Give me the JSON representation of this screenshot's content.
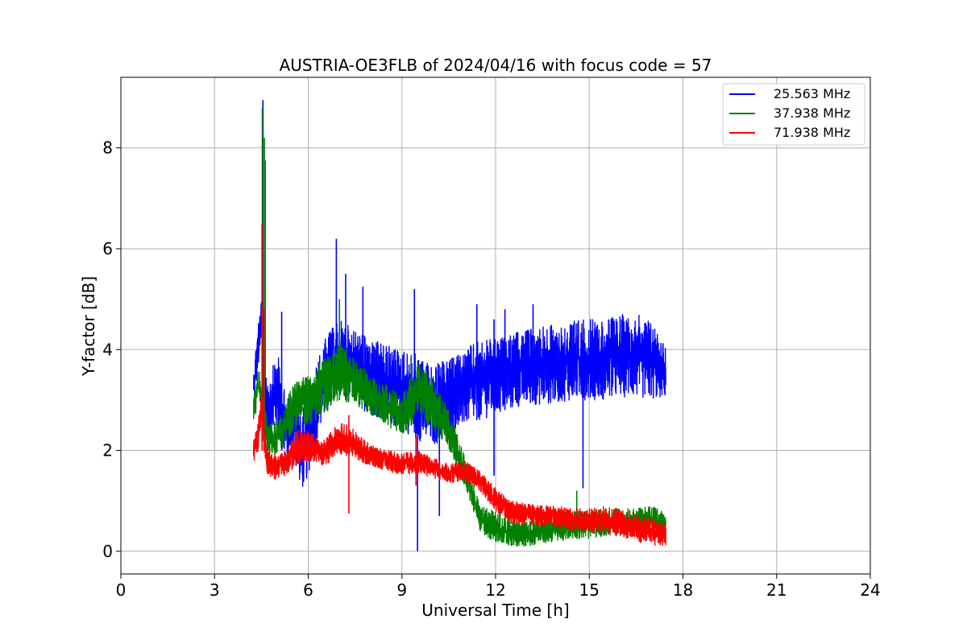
{
  "chart_data": {
    "type": "line",
    "title": "AUSTRIA-OE3FLB of 2024/04/16 with focus code = 57",
    "xlabel": "Universal Time [h]",
    "ylabel": "Y-factor [dB]",
    "xlim": [
      0,
      24
    ],
    "ylim": [
      -0.45,
      9.4
    ],
    "xticks": [
      0,
      3,
      6,
      9,
      12,
      15,
      18,
      21,
      24
    ],
    "xtick_labels": [
      "0",
      "3",
      "6",
      "9",
      "12",
      "15",
      "18",
      "21",
      "24"
    ],
    "yticks": [
      0,
      2,
      4,
      6,
      8
    ],
    "ytick_labels": [
      "0",
      "2",
      "4",
      "6",
      "8"
    ],
    "grid": true,
    "legend_position": "top-right",
    "series": [
      {
        "name": "25.563 MHz",
        "color": "#0000ff",
        "low": [
          [
            4.25,
            2.9
          ],
          [
            4.4,
            3.6
          ],
          [
            4.5,
            4.0
          ],
          [
            4.6,
            2.2
          ],
          [
            4.8,
            2.2
          ],
          [
            5.0,
            2.4
          ],
          [
            5.3,
            1.8
          ],
          [
            5.5,
            1.9
          ],
          [
            5.8,
            1.2
          ],
          [
            6.0,
            1.5
          ],
          [
            6.3,
            2.2
          ],
          [
            6.6,
            2.8
          ],
          [
            7.0,
            3.1
          ],
          [
            7.5,
            2.9
          ],
          [
            8.0,
            2.7
          ],
          [
            8.5,
            2.6
          ],
          [
            9.0,
            2.4
          ],
          [
            9.5,
            2.2
          ],
          [
            10.0,
            2.1
          ],
          [
            10.5,
            2.2
          ],
          [
            11.0,
            2.5
          ],
          [
            11.5,
            2.6
          ],
          [
            12.0,
            2.7
          ],
          [
            12.5,
            2.8
          ],
          [
            13.0,
            2.9
          ],
          [
            13.5,
            2.9
          ],
          [
            14.0,
            2.95
          ],
          [
            14.5,
            3.0
          ],
          [
            15.0,
            3.0
          ],
          [
            15.5,
            3.0
          ],
          [
            16.0,
            3.05
          ],
          [
            16.5,
            3.05
          ],
          [
            17.0,
            3.0
          ],
          [
            17.45,
            3.05
          ]
        ],
        "high": [
          [
            4.25,
            3.6
          ],
          [
            4.4,
            4.6
          ],
          [
            4.5,
            5.0
          ],
          [
            4.6,
            3.8
          ],
          [
            4.8,
            3.5
          ],
          [
            5.0,
            4.0
          ],
          [
            5.3,
            3.0
          ],
          [
            5.5,
            3.2
          ],
          [
            5.8,
            2.8
          ],
          [
            6.0,
            3.0
          ],
          [
            6.3,
            3.8
          ],
          [
            6.6,
            4.3
          ],
          [
            7.0,
            4.6
          ],
          [
            7.5,
            4.4
          ],
          [
            8.0,
            4.2
          ],
          [
            8.5,
            4.1
          ],
          [
            9.0,
            4.0
          ],
          [
            9.5,
            3.9
          ],
          [
            10.0,
            3.7
          ],
          [
            10.5,
            3.8
          ],
          [
            11.0,
            4.0
          ],
          [
            11.5,
            4.2
          ],
          [
            12.0,
            4.2
          ],
          [
            12.5,
            4.3
          ],
          [
            13.0,
            4.4
          ],
          [
            13.5,
            4.5
          ],
          [
            14.0,
            4.5
          ],
          [
            14.5,
            4.6
          ],
          [
            15.0,
            4.6
          ],
          [
            15.5,
            4.6
          ],
          [
            16.0,
            4.7
          ],
          [
            16.5,
            4.7
          ],
          [
            17.0,
            4.6
          ],
          [
            17.45,
            4.1
          ]
        ],
        "spikes": [
          [
            4.55,
            8.95,
            2.5
          ],
          [
            4.62,
            7.75,
            2.4
          ],
          [
            5.15,
            4.75,
            2.0
          ],
          [
            6.9,
            6.2,
            3.2
          ],
          [
            7.2,
            5.5,
            3.0
          ],
          [
            7.75,
            5.25,
            3.0
          ],
          [
            9.4,
            5.2,
            2.6
          ],
          [
            9.5,
            3.5,
            0.0
          ],
          [
            10.2,
            3.0,
            0.7
          ],
          [
            11.4,
            4.9,
            2.6
          ],
          [
            11.95,
            4.6,
            1.5
          ],
          [
            12.3,
            4.8,
            2.8
          ],
          [
            13.2,
            4.9,
            3.0
          ],
          [
            14.8,
            3.5,
            1.25
          ]
        ]
      },
      {
        "name": "37.938 MHz",
        "color": "#008000",
        "low": [
          [
            4.25,
            2.5
          ],
          [
            4.4,
            3.0
          ],
          [
            4.5,
            2.9
          ],
          [
            4.7,
            1.9
          ],
          [
            5.0,
            1.9
          ],
          [
            5.3,
            2.1
          ],
          [
            5.5,
            2.4
          ],
          [
            6.0,
            2.5
          ],
          [
            6.5,
            2.7
          ],
          [
            7.0,
            3.0
          ],
          [
            7.5,
            2.9
          ],
          [
            8.0,
            2.7
          ],
          [
            8.5,
            2.5
          ],
          [
            9.0,
            2.3
          ],
          [
            9.5,
            2.6
          ],
          [
            10.0,
            2.4
          ],
          [
            10.5,
            2.0
          ],
          [
            11.0,
            1.3
          ],
          [
            11.5,
            0.4
          ],
          [
            12.0,
            0.15
          ],
          [
            12.5,
            0.1
          ],
          [
            13.0,
            0.1
          ],
          [
            13.5,
            0.15
          ],
          [
            14.0,
            0.2
          ],
          [
            14.5,
            0.25
          ],
          [
            15.0,
            0.25
          ],
          [
            15.5,
            0.3
          ],
          [
            16.0,
            0.3
          ],
          [
            16.5,
            0.35
          ],
          [
            17.0,
            0.35
          ],
          [
            17.45,
            0.35
          ]
        ],
        "high": [
          [
            4.25,
            3.2
          ],
          [
            4.4,
            3.6
          ],
          [
            4.5,
            3.5
          ],
          [
            4.7,
            2.5
          ],
          [
            5.0,
            2.6
          ],
          [
            5.3,
            3.0
          ],
          [
            5.5,
            3.3
          ],
          [
            6.0,
            3.6
          ],
          [
            6.5,
            3.8
          ],
          [
            7.0,
            4.2
          ],
          [
            7.5,
            3.8
          ],
          [
            8.0,
            3.5
          ],
          [
            8.5,
            3.3
          ],
          [
            9.0,
            3.1
          ],
          [
            9.5,
            3.8
          ],
          [
            10.0,
            3.4
          ],
          [
            10.5,
            2.8
          ],
          [
            11.0,
            1.9
          ],
          [
            11.5,
            0.9
          ],
          [
            12.0,
            0.8
          ],
          [
            12.5,
            0.65
          ],
          [
            13.0,
            0.6
          ],
          [
            13.5,
            0.65
          ],
          [
            14.0,
            0.7
          ],
          [
            14.5,
            0.8
          ],
          [
            15.0,
            0.8
          ],
          [
            15.5,
            0.85
          ],
          [
            16.0,
            0.85
          ],
          [
            16.5,
            0.85
          ],
          [
            17.0,
            0.9
          ],
          [
            17.45,
            0.75
          ]
        ],
        "spikes": [
          [
            4.53,
            8.8,
            2.2
          ],
          [
            4.6,
            8.2,
            2.2
          ],
          [
            7.0,
            5.0,
            3.0
          ],
          [
            9.3,
            3.9,
            2.5
          ],
          [
            14.6,
            1.2,
            0.3
          ]
        ]
      },
      {
        "name": "71.938 MHz",
        "color": "#ff0000",
        "low": [
          [
            4.25,
            1.7
          ],
          [
            4.4,
            2.0
          ],
          [
            4.5,
            2.4
          ],
          [
            4.7,
            1.5
          ],
          [
            5.0,
            1.4
          ],
          [
            5.3,
            1.5
          ],
          [
            5.6,
            1.7
          ],
          [
            6.0,
            1.8
          ],
          [
            6.5,
            1.7
          ],
          [
            7.0,
            1.9
          ],
          [
            7.5,
            1.8
          ],
          [
            8.0,
            1.7
          ],
          [
            8.5,
            1.6
          ],
          [
            9.0,
            1.5
          ],
          [
            9.5,
            1.55
          ],
          [
            10.0,
            1.45
          ],
          [
            10.5,
            1.35
          ],
          [
            11.0,
            1.4
          ],
          [
            11.5,
            1.2
          ],
          [
            12.0,
            0.8
          ],
          [
            12.5,
            0.55
          ],
          [
            13.0,
            0.5
          ],
          [
            13.5,
            0.5
          ],
          [
            14.0,
            0.45
          ],
          [
            14.5,
            0.4
          ],
          [
            15.0,
            0.35
          ],
          [
            15.5,
            0.35
          ],
          [
            16.0,
            0.3
          ],
          [
            16.5,
            0.2
          ],
          [
            17.0,
            0.1
          ],
          [
            17.45,
            0.1
          ]
        ],
        "high": [
          [
            4.25,
            2.2
          ],
          [
            4.4,
            2.6
          ],
          [
            4.5,
            3.2
          ],
          [
            4.7,
            2.0
          ],
          [
            5.0,
            1.9
          ],
          [
            5.3,
            2.0
          ],
          [
            5.6,
            2.4
          ],
          [
            6.0,
            2.4
          ],
          [
            6.5,
            2.2
          ],
          [
            7.0,
            2.6
          ],
          [
            7.5,
            2.4
          ],
          [
            8.0,
            2.1
          ],
          [
            8.5,
            2.0
          ],
          [
            9.0,
            1.95
          ],
          [
            9.5,
            2.0
          ],
          [
            10.0,
            1.85
          ],
          [
            10.5,
            1.75
          ],
          [
            11.0,
            1.8
          ],
          [
            11.5,
            1.6
          ],
          [
            12.0,
            1.25
          ],
          [
            12.5,
            1.0
          ],
          [
            13.0,
            0.95
          ],
          [
            13.5,
            0.9
          ],
          [
            14.0,
            0.9
          ],
          [
            14.5,
            0.85
          ],
          [
            15.0,
            0.85
          ],
          [
            15.5,
            0.9
          ],
          [
            16.0,
            0.85
          ],
          [
            16.5,
            0.75
          ],
          [
            17.0,
            0.65
          ],
          [
            17.45,
            0.55
          ]
        ],
        "spikes": [
          [
            4.52,
            6.5,
            2.0
          ],
          [
            4.58,
            4.8,
            2.0
          ],
          [
            7.3,
            2.7,
            0.75
          ],
          [
            9.45,
            2.3,
            1.3
          ]
        ]
      }
    ]
  }
}
